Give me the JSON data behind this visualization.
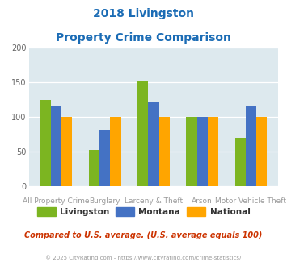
{
  "title_line1": "2018 Livingston",
  "title_line2": "Property Crime Comparison",
  "series": {
    "Livingston": [
      125,
      53,
      152,
      100,
      70
    ],
    "Montana": [
      115,
      82,
      121,
      100,
      115
    ],
    "National": [
      100,
      100,
      100,
      100,
      100
    ]
  },
  "colors": {
    "Livingston": "#7CB521",
    "Montana": "#4472C4",
    "National": "#FFA500"
  },
  "ylim": [
    0,
    200
  ],
  "yticks": [
    0,
    50,
    100,
    150,
    200
  ],
  "title_color": "#1B6CB5",
  "axis_bg_color": "#DDE9EE",
  "footer_text": "Compared to U.S. average. (U.S. average equals 100)",
  "copyright_text": "© 2025 CityRating.com - https://www.cityrating.com/crime-statistics/",
  "footer_color": "#CC3300",
  "copyright_color": "#999999",
  "group_labels_top": [
    "",
    "Burglary",
    "",
    "Arson",
    ""
  ],
  "group_labels_bottom": [
    "All Property Crime",
    "",
    "Larceny & Theft",
    "",
    "Motor Vehicle Theft"
  ]
}
